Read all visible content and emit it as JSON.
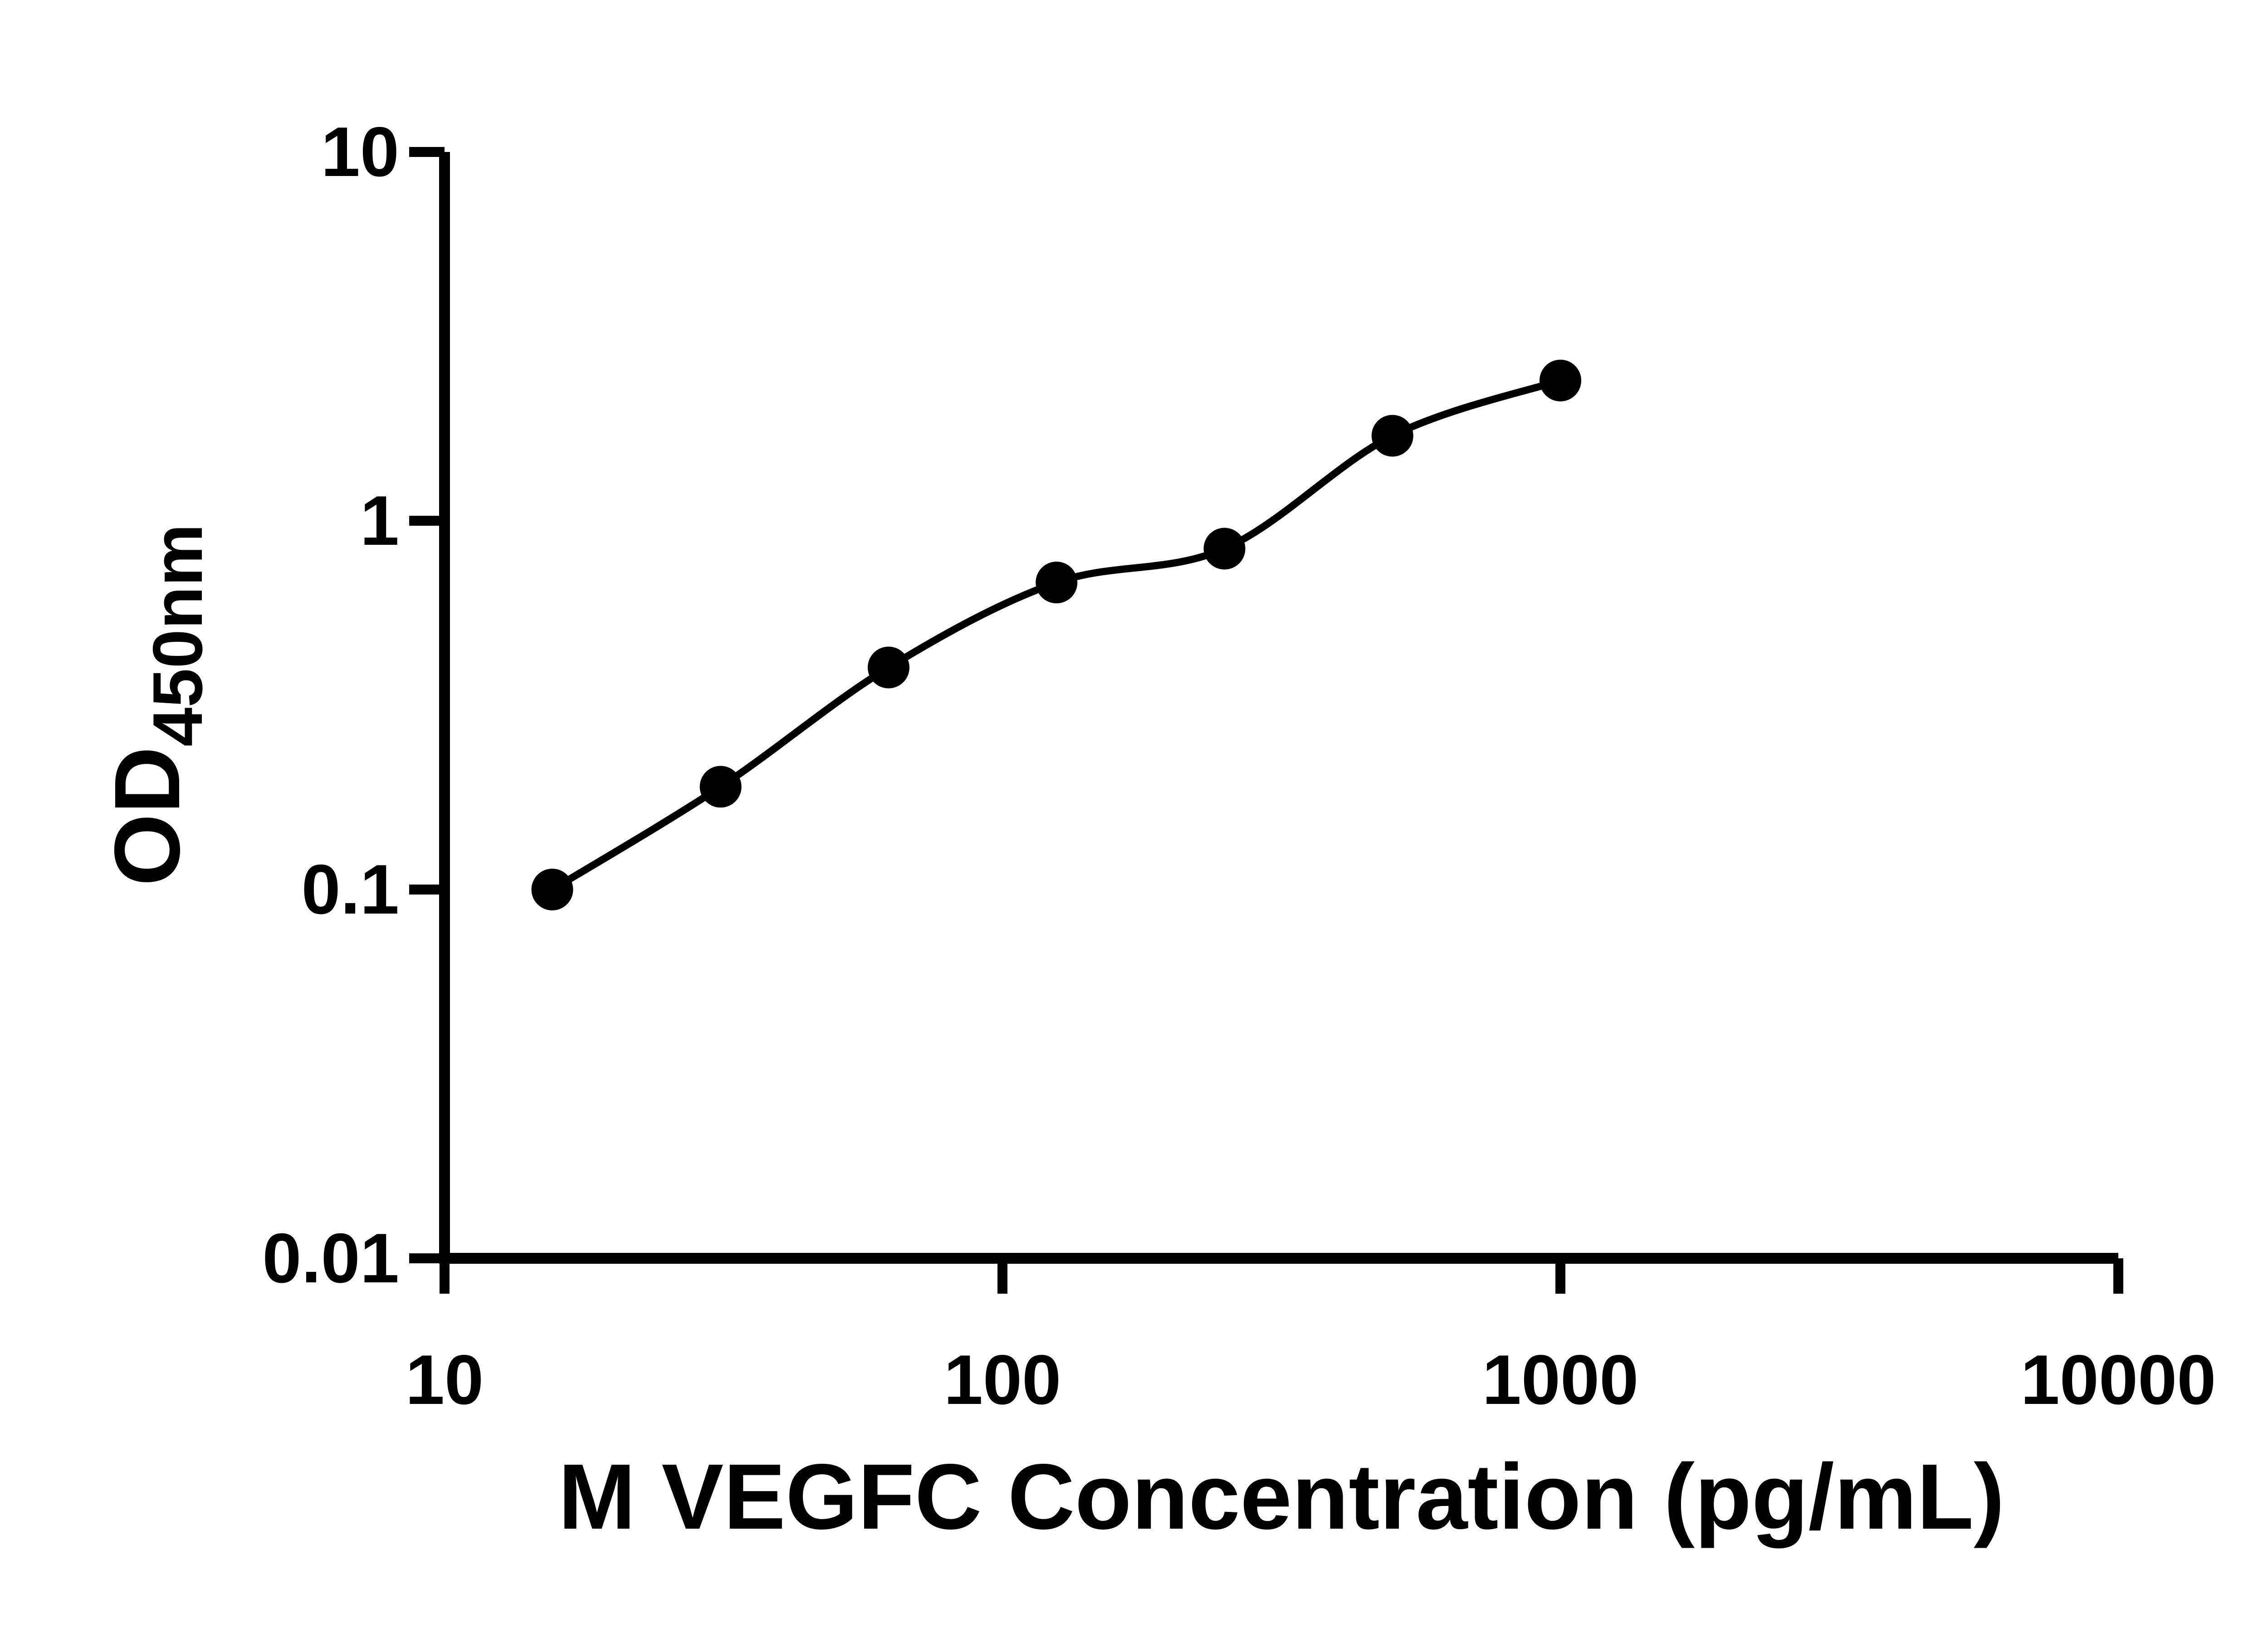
{
  "chart_data": {
    "type": "scatter",
    "title": "",
    "xlabel": "M VEGFC Concentration (pg/mL)",
    "ylabel_main": "OD",
    "ylabel_sub": "450nm",
    "xscale": "log",
    "yscale": "log",
    "xlim": [
      10,
      10000
    ],
    "ylim": [
      0.01,
      10
    ],
    "x_tick_values": [
      10,
      100,
      1000,
      10000
    ],
    "x_tick_labels": [
      "10",
      "100",
      "1000",
      "10000"
    ],
    "y_tick_values": [
      10,
      1,
      0.1,
      0.01
    ],
    "y_tick_labels": [
      "10",
      "1",
      "0.1",
      "0.01"
    ],
    "grid": false,
    "legend": "none",
    "x": [
      15.6,
      31.25,
      62.5,
      125,
      250,
      500,
      1000
    ],
    "y": [
      0.1,
      0.19,
      0.4,
      0.68,
      0.84,
      1.7,
      2.4
    ],
    "fit_line": true,
    "marker_shape": "circle",
    "marker_color": "#000000",
    "line_color": "#000000",
    "axis_color": "#000000",
    "background_color": "#ffffff"
  }
}
